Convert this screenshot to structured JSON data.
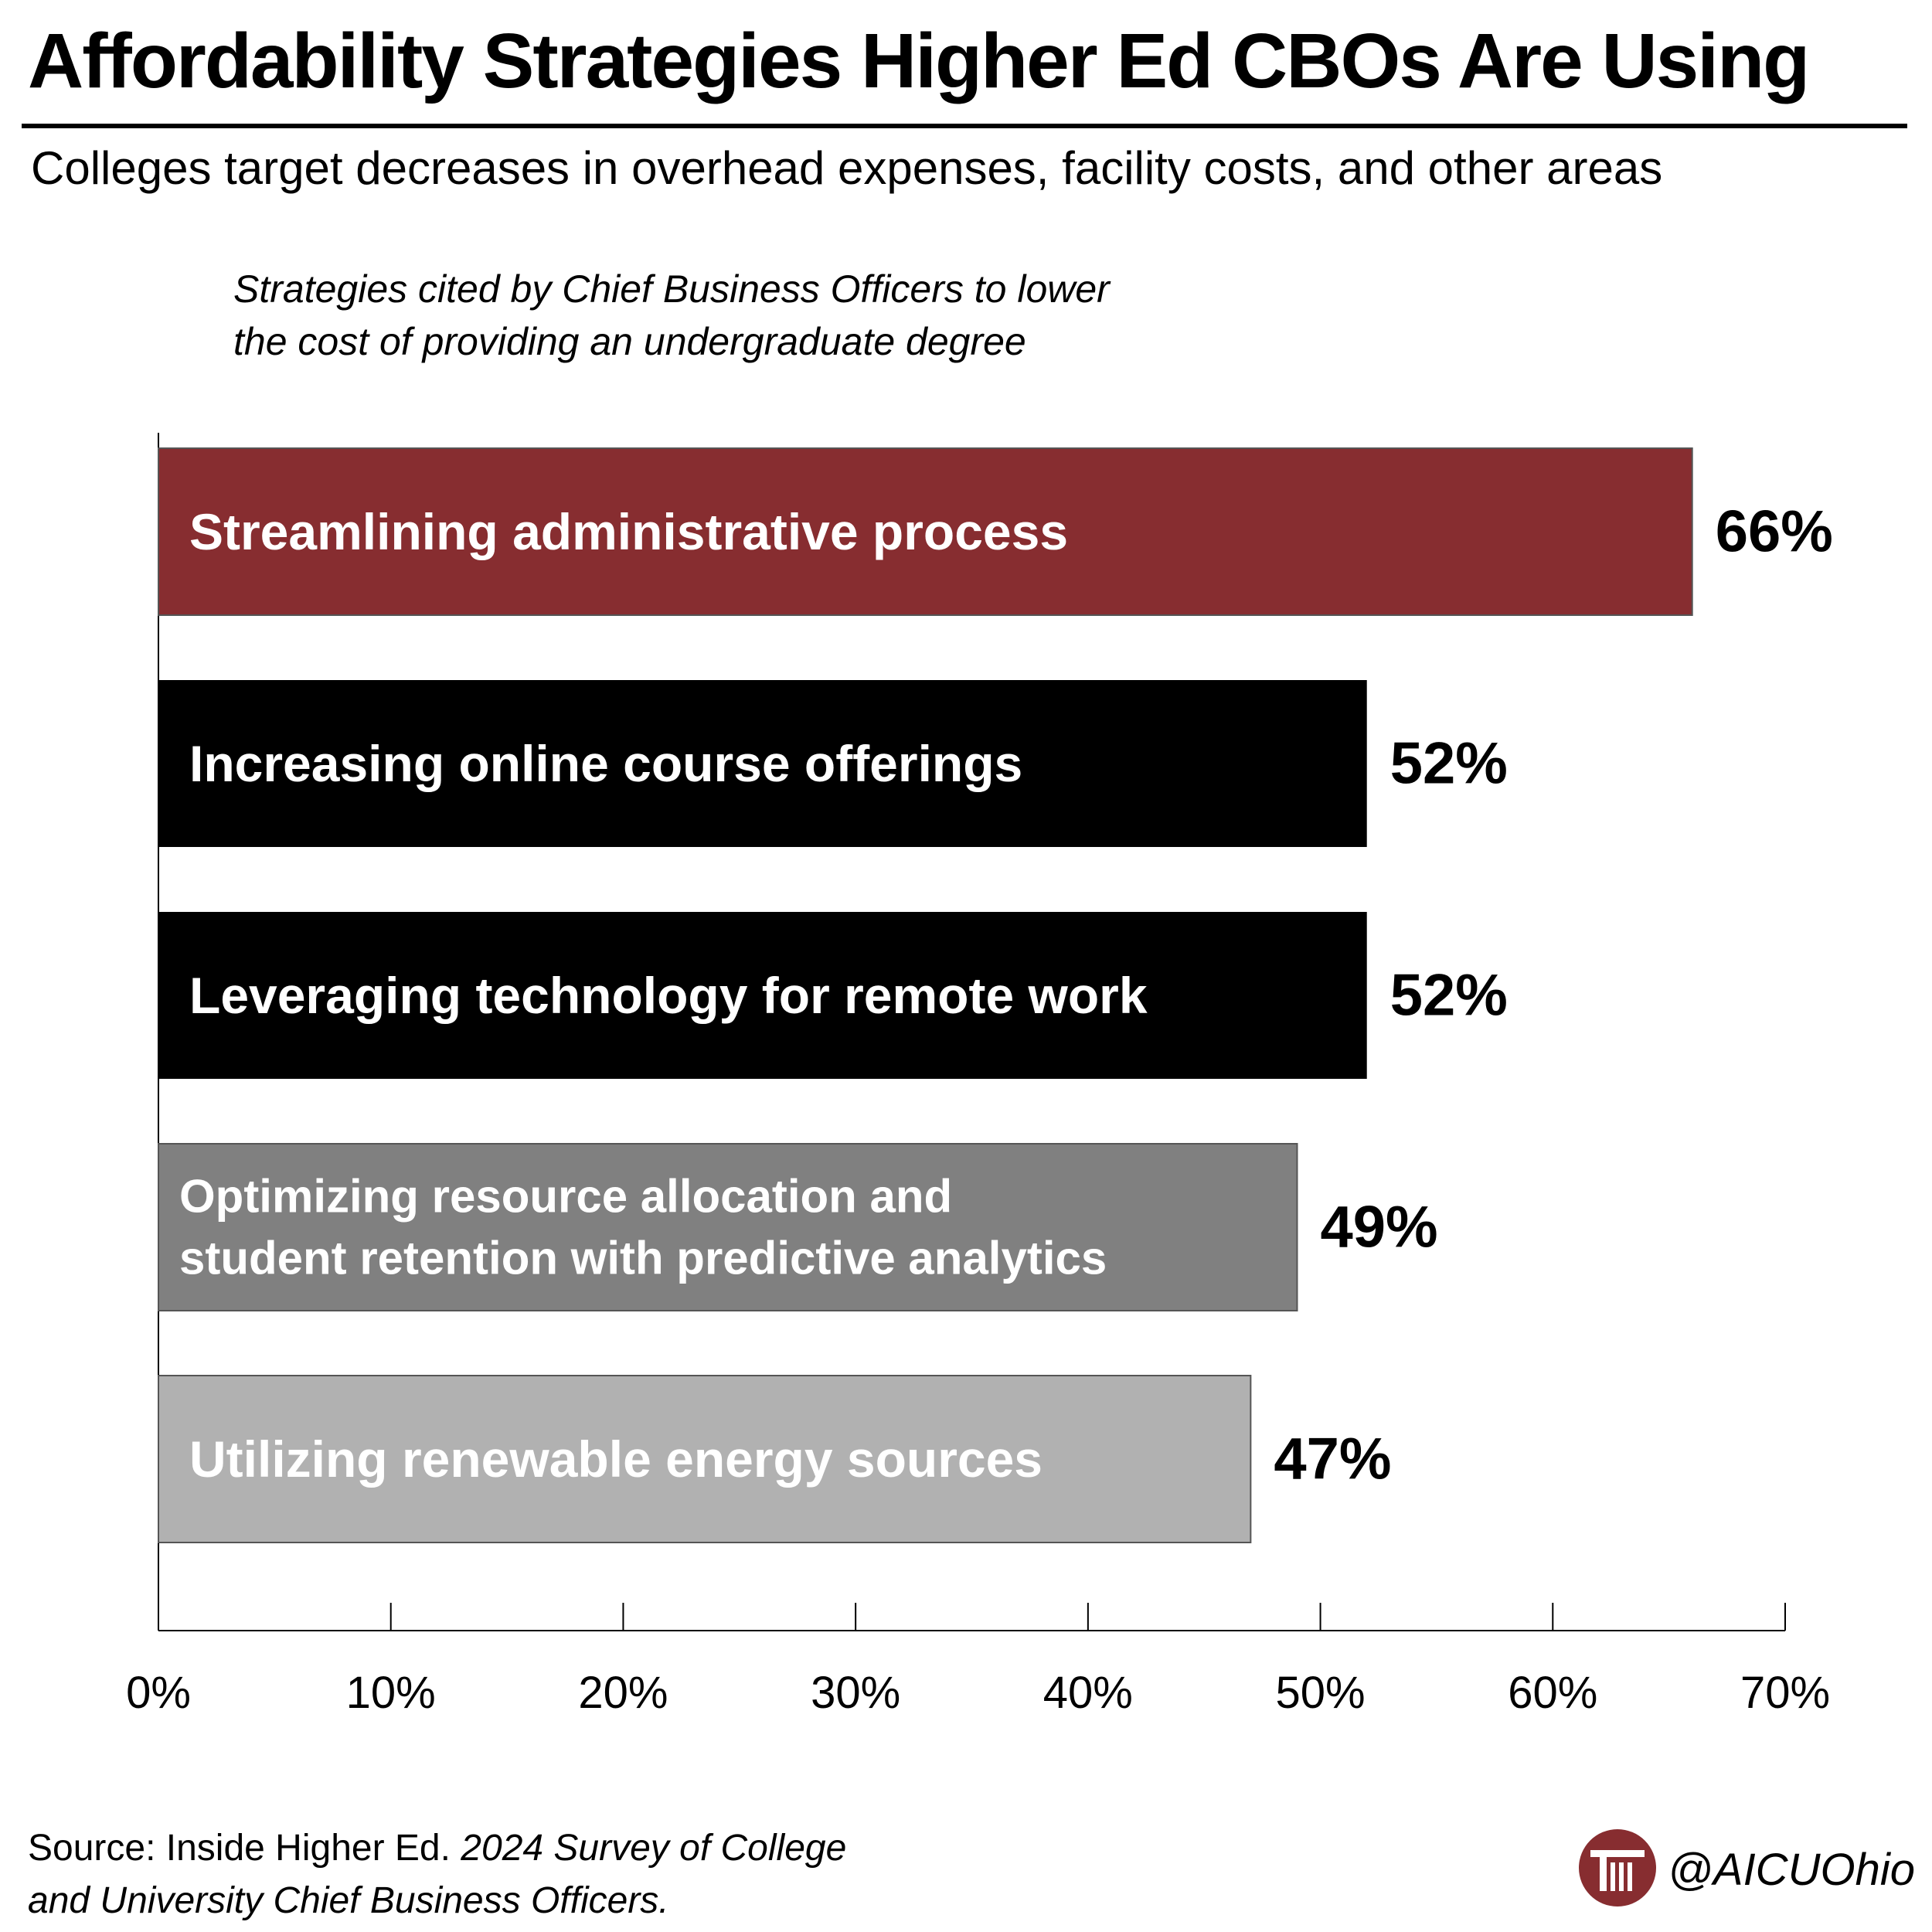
{
  "title": "Affordability Strategies Higher Ed CBOs Are Using",
  "subtitle": "Colleges target decreases in overhead expenses, facility costs, and other areas",
  "note": {
    "line1": "Strategies cited by Chief Business Officers to lower",
    "line2": "the cost of providing an undergraduate degree"
  },
  "chart_data": {
    "type": "bar",
    "orientation": "horizontal",
    "title": "Affordability Strategies Higher Ed CBOs Are Using",
    "subtitle": "Colleges target decreases in overhead expenses, facility costs, and other areas",
    "xlabel": "",
    "ylabel": "",
    "xlim": [
      0,
      70
    ],
    "grid": false,
    "categories": [
      "Streamlining administrative process",
      "Increasing online course offerings",
      "Leveraging technology for remote work",
      "Optimizing resource allocation and student retention with predictive analytics",
      "Utilizing renewable energy sources"
    ],
    "category_lines": [
      [
        "Streamlining administrative process"
      ],
      [
        "Increasing online course offerings"
      ],
      [
        "Leveraging technology for remote work"
      ],
      [
        "Optimizing resource allocation and",
        "student retention with predictive analytics"
      ],
      [
        "Utilizing renewable energy sources"
      ]
    ],
    "values": [
      66,
      52,
      52,
      49,
      47
    ],
    "value_labels": [
      "66%",
      "52%",
      "52%",
      "49%",
      "47%"
    ],
    "bar_colors": [
      "#872d30",
      "#000000",
      "#000000",
      "#808080",
      "#b1b1b1"
    ],
    "x_ticks": [
      0,
      10,
      20,
      30,
      40,
      50,
      60,
      70
    ],
    "x_tick_labels": [
      "0%",
      "10%",
      "20%",
      "30%",
      "40%",
      "50%",
      "60%",
      "70%"
    ]
  },
  "source": {
    "prefix": "Source: Inside Higher Ed. ",
    "italic_line1": "2024 Survey of College",
    "italic_line2": "and University Chief Business Officers."
  },
  "brand": {
    "handle": "@AICUOhio",
    "logo_icon": "aicu-column-logo-icon",
    "color": "#872d30"
  }
}
